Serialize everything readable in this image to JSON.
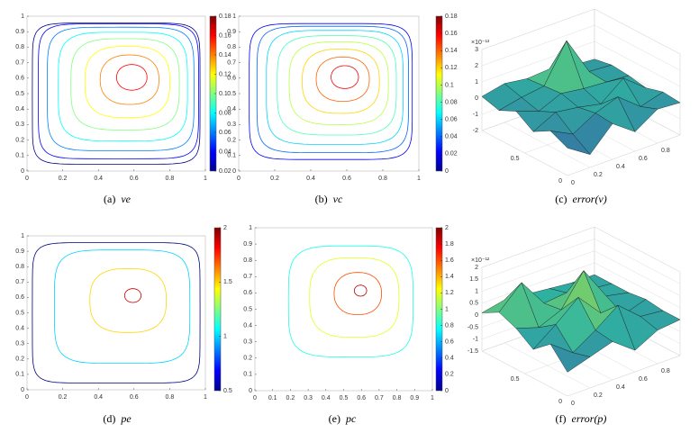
{
  "chart_data": [
    {
      "type": "contour",
      "caption_label": "(a)",
      "caption_name": "ve",
      "xlim": [
        0,
        1
      ],
      "xticks": [
        0,
        0.2,
        0.4,
        0.6,
        0.8,
        1
      ],
      "ylim": [
        0,
        1
      ],
      "yticks": [
        0,
        0.1,
        0.2,
        0.3,
        0.4,
        0.5,
        0.6,
        0.7,
        0.8,
        0.9,
        1
      ],
      "clim": [
        0.02,
        0.18
      ],
      "cticks": [
        0.02,
        0.04,
        0.06,
        0.08,
        0.1,
        0.12,
        0.14,
        0.16,
        0.18
      ],
      "levels": [
        0.02,
        0.04,
        0.06,
        0.08,
        0.1,
        0.12,
        0.14,
        0.16
      ]
    },
    {
      "type": "contour",
      "caption_label": "(b)",
      "caption_name": "vc",
      "xlim": [
        0,
        1
      ],
      "xticks": [
        0,
        0.2,
        0.4,
        0.6,
        0.8,
        1
      ],
      "ylim": [
        0,
        1
      ],
      "yticks": [
        0,
        0.1,
        0.2,
        0.3,
        0.4,
        0.5,
        0.6,
        0.7,
        0.8,
        0.9,
        1
      ],
      "clim": [
        0,
        0.18
      ],
      "cticks": [
        0,
        0.02,
        0.04,
        0.06,
        0.08,
        0.1,
        0.12,
        0.14,
        0.16,
        0.18
      ],
      "levels": [
        0.02,
        0.04,
        0.06,
        0.08,
        0.1,
        0.12,
        0.14,
        0.16
      ]
    },
    {
      "type": "surface",
      "caption_label": "(c)",
      "caption_name": "error(v)",
      "z_scale_label": "×10⁻¹³",
      "xlim": [
        0,
        1
      ],
      "xticks": [
        0,
        0.2,
        0.4,
        0.6,
        0.8
      ],
      "ylim": [
        0,
        1
      ],
      "yticks": [
        0,
        0.5
      ],
      "zlim": [
        -2,
        3
      ],
      "zticks": [
        -2,
        -1,
        0,
        1,
        2,
        3
      ],
      "x": [
        0,
        0.2,
        0.4,
        0.6,
        0.8,
        1
      ],
      "y": [
        0,
        0.2,
        0.4,
        0.6,
        0.8,
        1
      ],
      "z": [
        [
          -0.3,
          -1.2,
          0.2,
          -0.8,
          0.1,
          0
        ],
        [
          0.2,
          -0.5,
          0.3,
          0.8,
          -0.3,
          0.1
        ],
        [
          -0.4,
          0.3,
          0.1,
          -0.2,
          0.9,
          -0.2
        ],
        [
          0.3,
          -0.2,
          0.4,
          0.2,
          0.1,
          0
        ],
        [
          -0.2,
          0.1,
          0.3,
          2.6,
          0.2,
          0.1
        ],
        [
          0.1,
          0.4,
          0.2,
          0.3,
          0,
          -0.1
        ]
      ]
    },
    {
      "type": "contour",
      "caption_label": "(d)",
      "caption_name": "pe",
      "xlim": [
        0,
        1
      ],
      "xticks": [
        0,
        0.2,
        0.4,
        0.6,
        0.8,
        1
      ],
      "ylim": [
        0,
        1
      ],
      "yticks": [
        0,
        0.1,
        0.2,
        0.3,
        0.4,
        0.5,
        0.6,
        0.7,
        0.8,
        0.9,
        1
      ],
      "clim": [
        0.5,
        2
      ],
      "cticks": [
        0.5,
        1,
        1.5,
        2
      ],
      "levels": [
        0.5,
        1,
        1.5,
        1.9
      ]
    },
    {
      "type": "contour",
      "caption_label": "(e)",
      "caption_name": "pc",
      "xlim": [
        0,
        1
      ],
      "xticks": [
        0,
        0.1,
        0.2,
        0.3,
        0.4,
        0.5,
        0.6,
        0.7,
        0.8,
        0.9,
        1
      ],
      "ylim": [
        0,
        1
      ],
      "yticks": [
        0,
        0.1,
        0.2,
        0.3,
        0.4,
        0.5,
        0.6,
        0.7,
        0.8,
        0.9,
        1
      ],
      "clim": [
        0,
        2
      ],
      "cticks": [
        0,
        0.2,
        0.4,
        0.6,
        0.8,
        1,
        1.2,
        1.4,
        1.6,
        1.8,
        2
      ],
      "levels": [
        0.8,
        1.2,
        1.6,
        1.9
      ]
    },
    {
      "type": "surface",
      "caption_label": "(f)",
      "caption_name": "error(p)",
      "z_scale_label": "×10⁻¹²",
      "xlim": [
        0,
        1
      ],
      "xticks": [
        0,
        0.2,
        0.4,
        0.6,
        0.8
      ],
      "ylim": [
        0,
        1
      ],
      "yticks": [
        0,
        0.5
      ],
      "zlim": [
        -1.5,
        2
      ],
      "zticks": [
        -1.5,
        -1,
        -0.5,
        0,
        0.5,
        1,
        1.5,
        2
      ],
      "x": [
        0,
        0.2,
        0.4,
        0.6,
        0.8,
        1
      ],
      "y": [
        0,
        0.2,
        0.4,
        0.6,
        0.8,
        1
      ],
      "z": [
        [
          -0.5,
          -0.2,
          0.1,
          -0.6,
          -0.1,
          0
        ],
        [
          0.3,
          -0.4,
          0.2,
          0.9,
          0.1,
          0
        ],
        [
          -0.3,
          0.4,
          1.2,
          0.2,
          -0.2,
          0.1
        ],
        [
          0.2,
          -0.1,
          0.3,
          1.6,
          0.2,
          0
        ],
        [
          0.5,
          1.4,
          0.2,
          0.3,
          0.1,
          0
        ],
        [
          0.1,
          0.3,
          0.2,
          0.1,
          0,
          0
        ]
      ]
    }
  ]
}
